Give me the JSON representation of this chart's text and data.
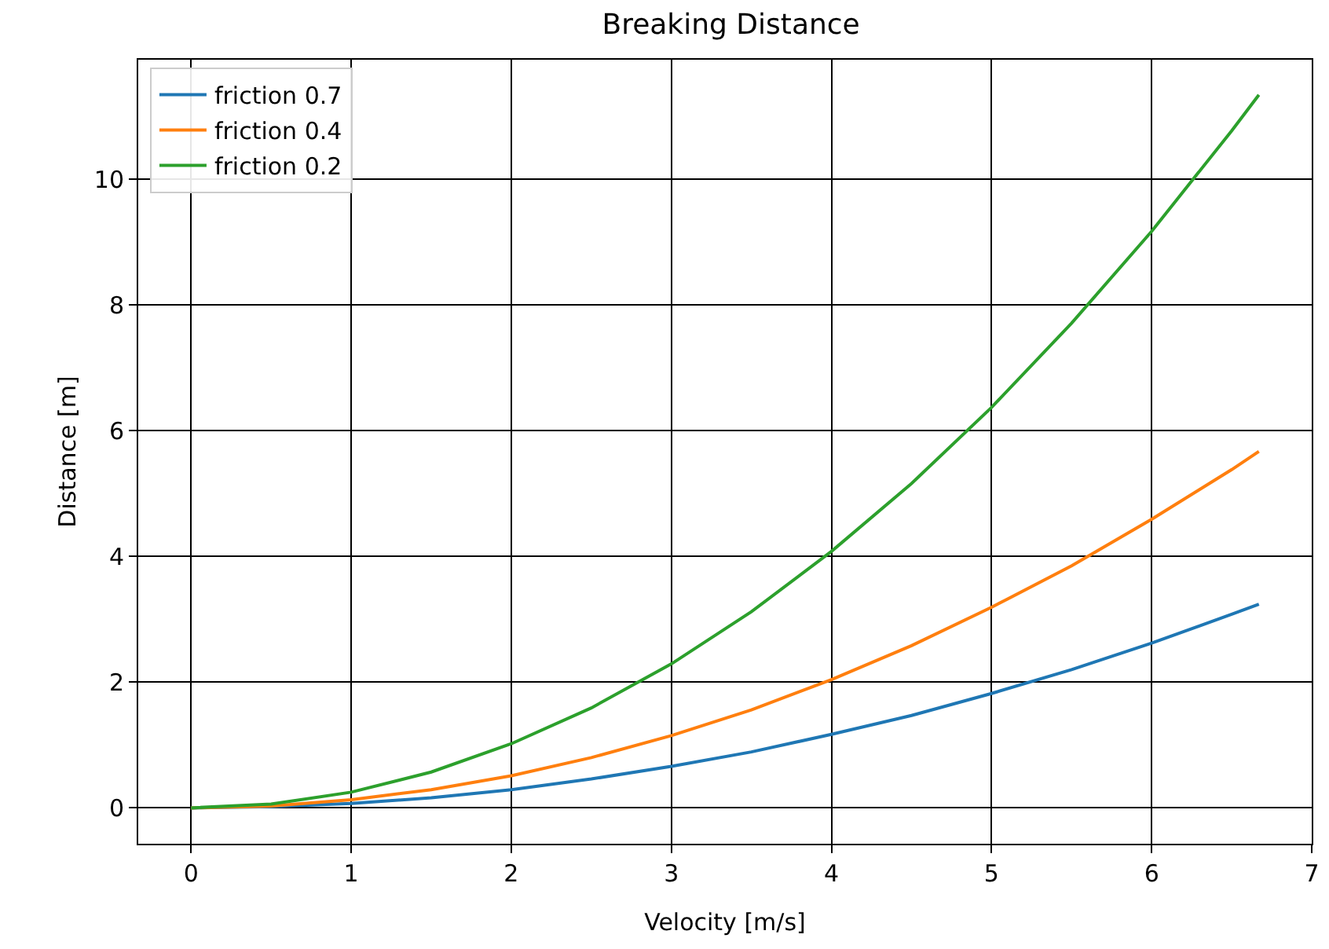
{
  "chart_data": {
    "type": "line",
    "title": "Breaking Distance",
    "xlabel": "Velocity [m/s]",
    "ylabel": "Distance [m]",
    "x": [
      0,
      0.5,
      1,
      1.5,
      2,
      2.5,
      3,
      3.5,
      4,
      4.5,
      5,
      5.5,
      6,
      6.5,
      6.67
    ],
    "series": [
      {
        "name": "friction 0.7",
        "color": "#1f77b4",
        "values": [
          0,
          0.02,
          0.07,
          0.16,
          0.29,
          0.46,
          0.66,
          0.89,
          1.17,
          1.47,
          1.82,
          2.2,
          2.62,
          3.08,
          3.24
        ]
      },
      {
        "name": "friction 0.4",
        "color": "#ff7f0e",
        "values": [
          0,
          0.03,
          0.13,
          0.29,
          0.51,
          0.8,
          1.15,
          1.56,
          2.04,
          2.58,
          3.19,
          3.85,
          4.59,
          5.38,
          5.67
        ]
      },
      {
        "name": "friction 0.2",
        "color": "#2ca02c",
        "values": [
          0,
          0.06,
          0.25,
          0.57,
          1.02,
          1.59,
          2.29,
          3.12,
          4.08,
          5.16,
          6.37,
          7.71,
          9.17,
          10.77,
          11.34
        ]
      }
    ],
    "xlim": [
      -0.33,
      7
    ],
    "ylim": [
      -0.57,
      11.9
    ],
    "xticks": [
      0,
      1,
      2,
      3,
      4,
      5,
      6,
      7
    ],
    "yticks": [
      0,
      2,
      4,
      6,
      8,
      10
    ],
    "grid": true,
    "legend": "top left",
    "line_style": "solid",
    "marker": "none"
  }
}
